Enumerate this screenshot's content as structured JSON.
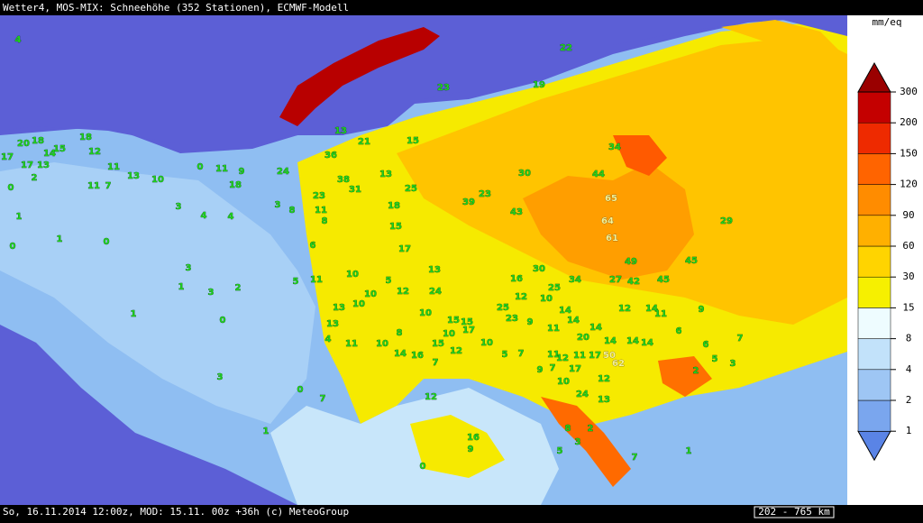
{
  "header": {
    "title": "Wetter4, MOS-MIX: Schneehöhe (352 Stationen), ECMWF-Modell"
  },
  "footer": {
    "text": "So, 16.11.2014 12:00z, MOD: 15.11. 00z +36h (c) MeteoGroup",
    "scale": "202 - 765 km"
  },
  "legend": {
    "unit": "mm/eq",
    "ticks": [
      1,
      2,
      4,
      8,
      15,
      30,
      60,
      90,
      120,
      150,
      200,
      300
    ],
    "colors": [
      "#5a84e6",
      "#7aa6ee",
      "#9ec6f4",
      "#c2e2fa",
      "#eefcff",
      "#f6f000",
      "#ffd400",
      "#ffb000",
      "#ff8c00",
      "#ff6400",
      "#ee2a00",
      "#c40000",
      "#9a0000"
    ]
  },
  "stations": [
    4,
    22,
    23,
    19,
    13,
    21,
    15,
    18,
    20,
    18,
    15,
    14,
    12,
    17,
    17,
    13,
    11,
    0,
    11,
    9,
    24,
    36,
    13,
    34,
    30,
    44,
    38,
    31,
    25,
    23,
    39,
    65,
    43,
    64,
    29,
    61,
    13,
    10,
    11,
    7,
    18,
    23,
    11,
    18,
    8,
    15,
    17,
    49,
    45,
    30,
    13,
    16,
    34,
    27,
    42,
    45,
    10,
    5,
    12,
    24,
    25,
    12,
    10,
    13,
    10,
    10,
    25,
    23,
    14,
    12,
    14,
    11,
    9,
    10,
    15,
    15,
    14,
    14,
    20,
    14,
    14,
    14,
    6,
    6,
    7,
    9,
    11,
    13,
    4,
    11,
    10,
    8,
    10,
    17,
    10,
    15,
    14,
    16,
    12,
    7,
    5,
    7,
    11,
    12,
    11,
    17,
    50,
    62,
    2,
    5,
    3,
    9,
    7,
    17,
    12,
    10,
    24,
    13,
    12,
    16,
    0,
    9,
    8,
    2,
    5,
    3,
    7,
    1,
    1,
    7,
    0,
    3,
    0,
    1,
    0,
    1,
    0,
    1,
    2,
    0,
    3,
    4,
    4,
    3,
    8,
    6,
    5,
    11,
    3,
    1,
    3,
    2
  ]
}
